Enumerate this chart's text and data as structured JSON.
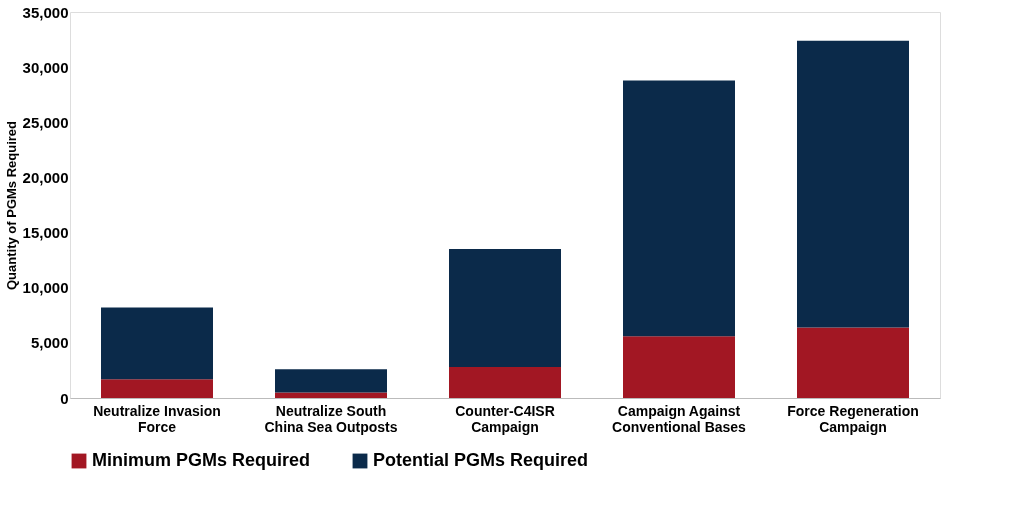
{
  "chart_data": {
    "type": "bar",
    "stacked": true,
    "ylabel": "Quantity of PGMs Required",
    "categories": [
      "Neutralize Invasion Force",
      "Neutralize South China Sea Outposts",
      "Counter-C4ISR Campaign",
      "Campaign Against Conventional Bases",
      "Force Regeneration Campaign"
    ],
    "series": [
      {
        "name": "Minimum PGMs Required",
        "color": "#a21723",
        "values": [
          1700,
          500,
          2800,
          5600,
          6400
        ]
      },
      {
        "name": "Potential PGMs Required",
        "color": "#0b2a4a",
        "values": [
          6500,
          2100,
          10700,
          23200,
          26000
        ]
      }
    ],
    "ylim": [
      0,
      35000
    ],
    "yticks": [
      {
        "value": 0,
        "label": "0"
      },
      {
        "value": 5000,
        "label": "5,000"
      },
      {
        "value": 10000,
        "label": "10,000"
      },
      {
        "value": 15000,
        "label": "15,000"
      },
      {
        "value": 20000,
        "label": "20,000"
      },
      {
        "value": 25000,
        "label": "25,000"
      },
      {
        "value": 30000,
        "label": "30,000"
      },
      {
        "value": 35000,
        "label": "35,000"
      }
    ],
    "grid": false,
    "legend": "bottom"
  }
}
